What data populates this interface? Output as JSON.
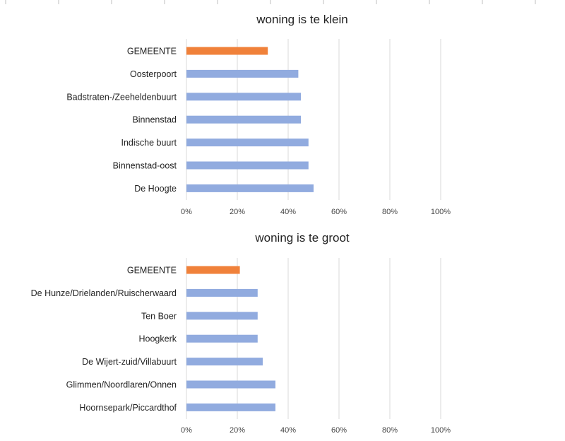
{
  "colors": {
    "highlight": "#f0813a",
    "bar": "#91abdf",
    "grid": "#d9d9d9",
    "top_tick": "#bfbfbf"
  },
  "chart_data": [
    {
      "type": "bar",
      "orientation": "horizontal",
      "title": "woning is te klein",
      "categories": [
        "GEMEENTE",
        "Oosterpoort",
        "Badstraten-/Zeeheldenbuurt",
        "Binnenstad",
        "Indische buurt",
        "Binnenstad-oost",
        "De Hoogte"
      ],
      "values": [
        32,
        44,
        45,
        45,
        48,
        48,
        50
      ],
      "highlight_index": 0,
      "xlim": [
        0,
        100
      ],
      "x_ticks": [
        "0%",
        "20%",
        "40%",
        "60%",
        "80%",
        "100%"
      ],
      "grid": true
    },
    {
      "type": "bar",
      "orientation": "horizontal",
      "title": "woning is te groot",
      "categories": [
        "GEMEENTE",
        "De Hunze/Drielanden/Ruischerwaard",
        "Ten Boer",
        "Hoogkerk",
        "De Wijert-zuid/Villabuurt",
        "Glimmen/Noordlaren/Onnen",
        "Hoornsepark/Piccardthof"
      ],
      "values": [
        21,
        28,
        28,
        28,
        30,
        35,
        35
      ],
      "highlight_index": 0,
      "xlim": [
        0,
        100
      ],
      "x_ticks": [
        "0%",
        "20%",
        "40%",
        "60%",
        "80%",
        "100%"
      ],
      "grid": true
    }
  ]
}
